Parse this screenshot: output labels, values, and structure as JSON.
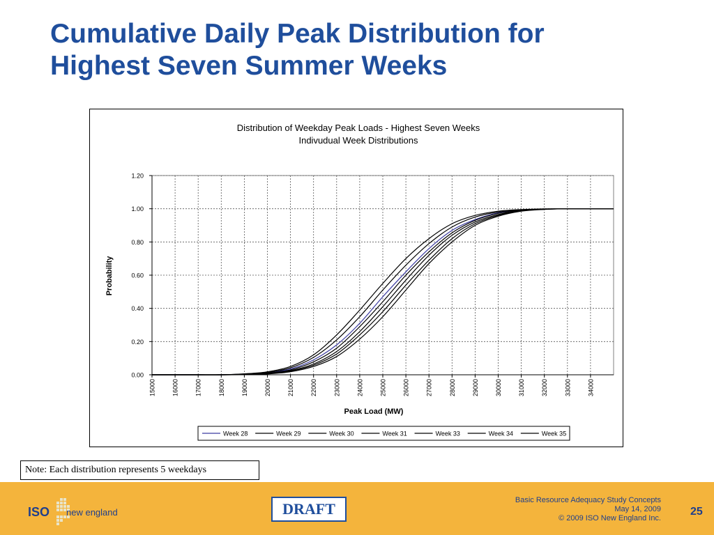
{
  "slide": {
    "title_line1": "Cumulative Daily Peak Distribution for",
    "title_line2": "Highest Seven Summer Weeks",
    "note": "Note: Each distribution represents 5 weekdays",
    "draft_label": "DRAFT",
    "footer_line1": "Basic Resource Adequacy Study Concepts",
    "footer_line2": "May 14, 2009",
    "footer_line3": "© 2009 ISO New England Inc.",
    "page_number": "25",
    "logo_iso": "ISO",
    "logo_name": "new england",
    "title_color": "#1f4e9c",
    "footer_color": "#f4b43c"
  },
  "chart_data": {
    "type": "line",
    "title": "Distribution of Weekday Peak Loads - Highest Seven Weeks",
    "subtitle": "Indivudual Week Distributions",
    "xlabel": "Peak Load (MW)",
    "ylabel": "Probability",
    "x": [
      15000,
      16000,
      17000,
      18000,
      19000,
      20000,
      21000,
      22000,
      23000,
      24000,
      25000,
      26000,
      27000,
      28000,
      29000,
      30000,
      31000,
      32000,
      33000,
      34000,
      35000
    ],
    "xtick_labels": [
      "15000",
      "16000",
      "17000",
      "18000",
      "19000",
      "20000",
      "21000",
      "22000",
      "23000",
      "24000",
      "25000",
      "26000",
      "27000",
      "28000",
      "29000",
      "30000",
      "31000",
      "32000",
      "33000",
      "34000"
    ],
    "ytick_labels": [
      "0.00",
      "0.20",
      "0.40",
      "0.60",
      "0.80",
      "1.00",
      "1.20"
    ],
    "xlim": [
      15000,
      35000
    ],
    "ylim": [
      0,
      1.2
    ],
    "grid": true,
    "legend_position": "bottom",
    "series": [
      {
        "name": "Week 28",
        "color": "#3a3aa0",
        "values": [
          0,
          0,
          0,
          0,
          0.004,
          0.012,
          0.035,
          0.09,
          0.18,
          0.31,
          0.47,
          0.62,
          0.76,
          0.87,
          0.935,
          0.975,
          0.99,
          0.997,
          1.0,
          1.0,
          1.0
        ]
      },
      {
        "name": "Week 29",
        "color": "#000000",
        "values": [
          0,
          0,
          0,
          0,
          0.002,
          0.008,
          0.025,
          0.065,
          0.14,
          0.26,
          0.41,
          0.57,
          0.72,
          0.84,
          0.92,
          0.965,
          0.988,
          0.997,
          1.0,
          1.0,
          1.0
        ]
      },
      {
        "name": "Week 30",
        "color": "#000000",
        "values": [
          0,
          0,
          0,
          0,
          0.006,
          0.018,
          0.05,
          0.12,
          0.24,
          0.39,
          0.55,
          0.7,
          0.82,
          0.91,
          0.96,
          0.985,
          0.995,
          0.999,
          1.0,
          1.0,
          1.0
        ]
      },
      {
        "name": "Week 31",
        "color": "#000000",
        "values": [
          0,
          0,
          0,
          0,
          0.002,
          0.007,
          0.022,
          0.058,
          0.125,
          0.24,
          0.38,
          0.54,
          0.69,
          0.82,
          0.91,
          0.96,
          0.987,
          0.997,
          1.0,
          1.0,
          1.0
        ]
      },
      {
        "name": "Week 33",
        "color": "#000000",
        "values": [
          0,
          0,
          0,
          0,
          0.003,
          0.01,
          0.03,
          0.078,
          0.16,
          0.29,
          0.44,
          0.6,
          0.74,
          0.855,
          0.93,
          0.972,
          0.99,
          0.998,
          1.0,
          1.0,
          1.0
        ]
      },
      {
        "name": "Week 34",
        "color": "#000000",
        "values": [
          0,
          0,
          0,
          0,
          0.001,
          0.005,
          0.018,
          0.05,
          0.11,
          0.215,
          0.35,
          0.51,
          0.67,
          0.8,
          0.9,
          0.955,
          0.985,
          0.996,
          1.0,
          1.0,
          1.0
        ]
      },
      {
        "name": "Week 35",
        "color": "#000000",
        "values": [
          0,
          0,
          0,
          0,
          0.004,
          0.014,
          0.042,
          0.105,
          0.21,
          0.35,
          0.51,
          0.66,
          0.79,
          0.89,
          0.95,
          0.98,
          0.993,
          0.998,
          1.0,
          1.0,
          1.0
        ]
      }
    ]
  }
}
